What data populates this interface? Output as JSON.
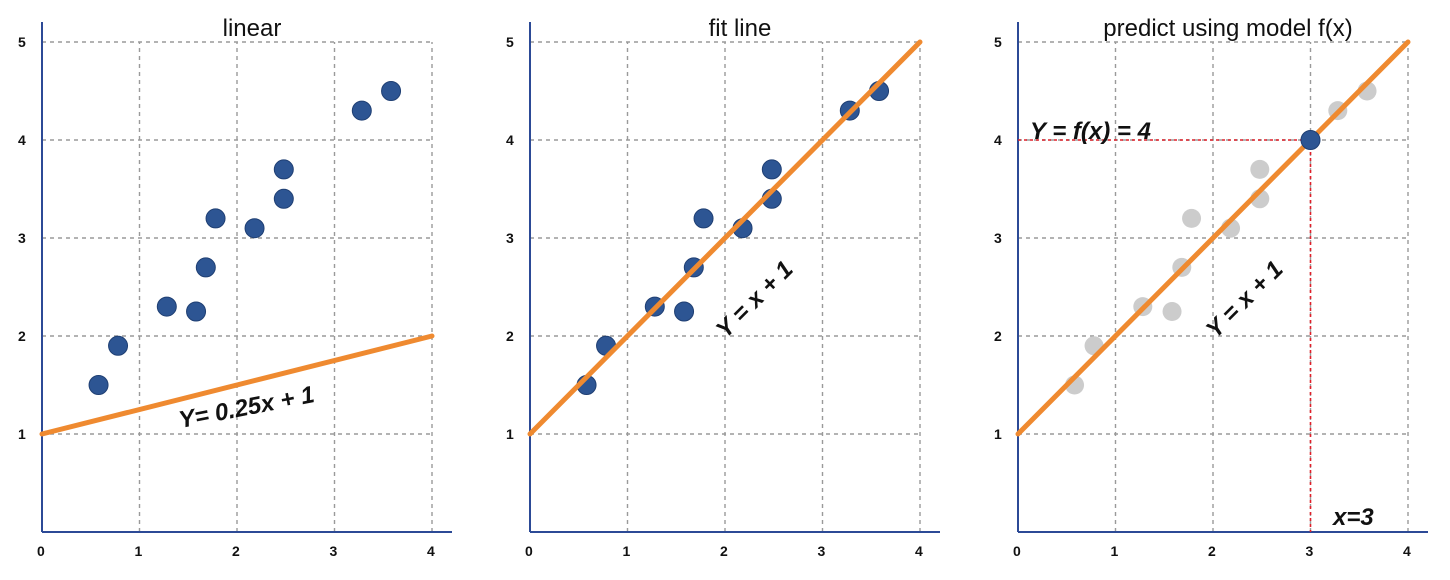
{
  "chart_data": [
    {
      "type": "scatter",
      "title": "linear",
      "xlim": [
        0,
        4
      ],
      "ylim": [
        0,
        5
      ],
      "x_ticks": [
        "0",
        "1",
        "2",
        "3",
        "4"
      ],
      "y_ticks": [
        "1",
        "2",
        "3",
        "4",
        "5"
      ],
      "grid": true,
      "points": [
        [
          0.58,
          1.5
        ],
        [
          0.78,
          1.9
        ],
        [
          1.28,
          2.3
        ],
        [
          1.58,
          2.25
        ],
        [
          1.68,
          2.7
        ],
        [
          1.78,
          3.2
        ],
        [
          2.18,
          3.1
        ],
        [
          2.48,
          3.4
        ],
        [
          2.48,
          3.7
        ],
        [
          3.28,
          4.3
        ],
        [
          3.58,
          4.5
        ]
      ],
      "point_color": "#2d5593",
      "line": {
        "slope": 0.25,
        "intercept": 1,
        "color": "#ef8a30"
      },
      "annotation": "Y= 0.25x + 1"
    },
    {
      "type": "scatter",
      "title": "fit line",
      "xlim": [
        0,
        4
      ],
      "ylim": [
        0,
        5
      ],
      "x_ticks": [
        "0",
        "1",
        "2",
        "3",
        "4"
      ],
      "y_ticks": [
        "1",
        "2",
        "3",
        "4",
        "5"
      ],
      "grid": true,
      "points": [
        [
          0.58,
          1.5
        ],
        [
          0.78,
          1.9
        ],
        [
          1.28,
          2.3
        ],
        [
          1.58,
          2.25
        ],
        [
          1.68,
          2.7
        ],
        [
          1.78,
          3.2
        ],
        [
          2.18,
          3.1
        ],
        [
          2.48,
          3.4
        ],
        [
          2.48,
          3.7
        ],
        [
          3.28,
          4.3
        ],
        [
          3.58,
          4.5
        ]
      ],
      "point_color": "#2d5593",
      "line": {
        "slope": 1,
        "intercept": 1,
        "color": "#ef8a30"
      },
      "annotation": "Y = x + 1"
    },
    {
      "type": "scatter",
      "title": "predict using model f(x)",
      "xlim": [
        0,
        4
      ],
      "ylim": [
        0,
        5
      ],
      "x_ticks": [
        "0",
        "1",
        "2",
        "3",
        "4"
      ],
      "y_ticks": [
        "1",
        "2",
        "3",
        "4",
        "5"
      ],
      "grid": true,
      "points": [
        [
          0.58,
          1.5
        ],
        [
          0.78,
          1.9
        ],
        [
          1.28,
          2.3
        ],
        [
          1.58,
          2.25
        ],
        [
          1.68,
          2.7
        ],
        [
          1.78,
          3.2
        ],
        [
          2.18,
          3.1
        ],
        [
          2.48,
          3.4
        ],
        [
          2.48,
          3.7
        ],
        [
          3.28,
          4.3
        ],
        [
          3.58,
          4.5
        ]
      ],
      "point_color": "#cccccc",
      "line": {
        "slope": 1,
        "intercept": 1,
        "color": "#ef8a30"
      },
      "annotation": "Y = x + 1",
      "prediction": {
        "x": 3,
        "y": 4,
        "color": "#2d5593",
        "guide_color": "#e0202a",
        "y_label": "Y = f(x) = 4",
        "x_label": "x=3"
      }
    }
  ]
}
